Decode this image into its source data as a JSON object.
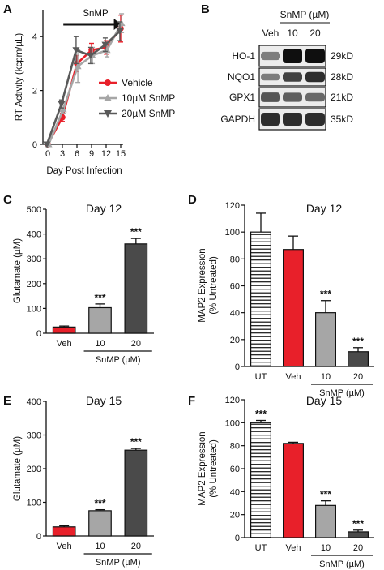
{
  "colors": {
    "vehicle": "#e8202a",
    "snmp10": "#a6a6a6",
    "snmp20": "#595959",
    "untreated_fill": "#ffffff",
    "bar_veh": "#e8202a",
    "bar_10": "#a6a6a6",
    "bar_20": "#4a4a4a"
  },
  "panel_letters": {
    "a": "A",
    "b": "B",
    "c": "C",
    "d": "D",
    "e": "E",
    "f": "F"
  },
  "blot": {
    "treatment_header": "SnMP (µM)",
    "lane_labels": [
      "Veh",
      "10",
      "20"
    ],
    "rows": [
      {
        "protein": "HO-1",
        "size": "29kD",
        "intensity": [
          0.45,
          1.0,
          1.0
        ]
      },
      {
        "protein": "NQO1",
        "size": "28kD",
        "intensity": [
          0.45,
          0.75,
          0.85
        ]
      },
      {
        "protein": "GPX1",
        "size": "21kD",
        "intensity": [
          0.65,
          0.6,
          0.55
        ]
      },
      {
        "protein": "GAPDH",
        "size": "35kD",
        "intensity": [
          0.85,
          0.85,
          0.85
        ]
      }
    ]
  },
  "chart_data": [
    {
      "panel": "A",
      "type": "line",
      "title": "",
      "xlabel": "Day Post Infection",
      "ylabel": "RT Activity (kcpm/µL)",
      "x": [
        0,
        3,
        6,
        9,
        12,
        15
      ],
      "xlim": [
        -1,
        15.5
      ],
      "ylim": [
        0,
        5
      ],
      "yticks": [
        0,
        2,
        4
      ],
      "annotation": "SnMP",
      "series": [
        {
          "name": "Vehicle",
          "color_key": "vehicle",
          "marker": "circle",
          "values": [
            0,
            1.0,
            3.0,
            3.5,
            3.6,
            4.3
          ],
          "errors": [
            0,
            0.15,
            0.3,
            0.25,
            0.25,
            0.5
          ]
        },
        {
          "name": "10µM SnMP",
          "color_key": "snmp10",
          "marker": "triangle-up",
          "values": [
            0,
            1.3,
            2.9,
            3.3,
            3.5,
            4.5
          ],
          "errors": [
            0,
            0.15,
            0.6,
            0.3,
            0.25,
            0.35
          ]
        },
        {
          "name": "20µM SnMP",
          "color_key": "snmp20",
          "marker": "triangle-down",
          "values": [
            0,
            1.5,
            3.5,
            3.3,
            3.7,
            4.2
          ],
          "errors": [
            0,
            0.15,
            0.5,
            0.3,
            0.25,
            0.35
          ]
        }
      ],
      "legend_position": "bottom-right"
    },
    {
      "panel": "C",
      "type": "bar",
      "title": "Day 12",
      "ylabel": "Glutamate (µM)",
      "categories": [
        "Veh",
        "10",
        "20"
      ],
      "values": [
        25,
        103,
        360
      ],
      "errors": [
        4,
        15,
        22
      ],
      "significance": [
        "",
        "***",
        "***"
      ],
      "ylim": [
        0,
        500
      ],
      "yticks": [
        0,
        100,
        200,
        300,
        400,
        500
      ],
      "group_label": "SnMP (µM)",
      "fill_keys": [
        "bar_veh",
        "bar_10",
        "bar_20"
      ]
    },
    {
      "panel": "D",
      "type": "bar",
      "title": "Day 12",
      "ylabel": "MAP2 Expression\n(% Untreated)",
      "categories": [
        "UT",
        "Veh",
        "10",
        "20"
      ],
      "values": [
        100,
        87,
        40,
        11
      ],
      "errors": [
        14,
        10,
        9,
        3
      ],
      "significance": [
        "",
        "",
        "***",
        "***"
      ],
      "ylim": [
        0,
        120
      ],
      "yticks": [
        0,
        20,
        40,
        60,
        80,
        100,
        120
      ],
      "group_label": "SnMP (µM)",
      "fill_keys": [
        "untreated_fill",
        "bar_veh",
        "bar_10",
        "bar_20"
      ],
      "hatched": [
        true,
        false,
        false,
        false
      ]
    },
    {
      "panel": "E",
      "type": "bar",
      "title": "Day 15",
      "ylabel": "Glutamate (µM)",
      "categories": [
        "Veh",
        "10",
        "20"
      ],
      "values": [
        27,
        75,
        255
      ],
      "errors": [
        3,
        3,
        5
      ],
      "significance": [
        "",
        "***",
        "***"
      ],
      "ylim": [
        0,
        400
      ],
      "yticks": [
        0,
        100,
        200,
        300,
        400
      ],
      "group_label": "SnMP (µM)",
      "fill_keys": [
        "bar_veh",
        "bar_10",
        "bar_20"
      ]
    },
    {
      "panel": "F",
      "type": "bar",
      "title": "Day 15",
      "ylabel": "MAP2 Expression\n(% Untreated)",
      "categories": [
        "UT",
        "Veh",
        "10",
        "20"
      ],
      "values": [
        100,
        82,
        28,
        5
      ],
      "errors": [
        2,
        1,
        4,
        1.5
      ],
      "significance": [
        "***",
        "",
        "***",
        "***"
      ],
      "ylim": [
        0,
        120
      ],
      "yticks": [
        0,
        20,
        40,
        60,
        80,
        100,
        120
      ],
      "group_label": "SnMP (µM)",
      "fill_keys": [
        "untreated_fill",
        "bar_veh",
        "bar_10",
        "bar_20"
      ],
      "hatched": [
        true,
        false,
        false,
        false
      ]
    }
  ]
}
